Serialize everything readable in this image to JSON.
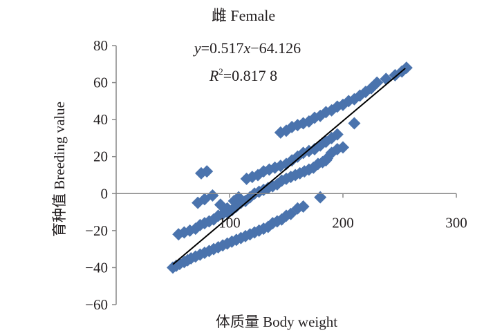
{
  "chart_data": {
    "type": "scatter",
    "title": "雌 Female",
    "annotations": {
      "equation": {
        "y": "y",
        "eq": "=0.517",
        "x": "x",
        "rest": "−64.126"
      },
      "r2": {
        "R": "R",
        "sup": "2",
        "rest": "=0.817 8"
      }
    },
    "xlabel": "体质量 Body weight",
    "ylabel": "育种值 Breeding value",
    "xlim": [
      0,
      300
    ],
    "ylim": [
      -60,
      80
    ],
    "x_ticks": [
      "100",
      "200",
      "300"
    ],
    "y_ticks": [
      "80",
      "60",
      "40",
      "20",
      "0",
      "−20",
      "−40",
      "−60"
    ],
    "x_tick_values": [
      100,
      200,
      300
    ],
    "y_tick_values": [
      80,
      60,
      40,
      20,
      0,
      -20,
      -40,
      -60
    ],
    "grid": false,
    "colors": {
      "points": "#4a73ad",
      "trendline": "#000000",
      "axes": "#888888"
    },
    "trendline": {
      "slope": 0.517,
      "intercept": -64.126,
      "x_range": [
        50,
        255
      ]
    },
    "series": [
      {
        "values": [
          [
            50,
            -40
          ],
          [
            53,
            -39
          ],
          [
            56,
            -38
          ],
          [
            60,
            -37
          ],
          [
            63,
            -36
          ],
          [
            66,
            -35
          ],
          [
            70,
            -34
          ],
          [
            74,
            -33
          ],
          [
            78,
            -32
          ],
          [
            82,
            -31
          ],
          [
            86,
            -30
          ],
          [
            90,
            -29
          ],
          [
            94,
            -28
          ],
          [
            98,
            -27
          ],
          [
            102,
            -26
          ],
          [
            106,
            -25
          ],
          [
            110,
            -24
          ],
          [
            114,
            -23
          ],
          [
            118,
            -22
          ],
          [
            122,
            -21
          ],
          [
            126,
            -20
          ],
          [
            130,
            -19
          ],
          [
            134,
            -18
          ],
          [
            138,
            -16
          ],
          [
            142,
            -15
          ],
          [
            146,
            -14
          ],
          [
            150,
            -12
          ],
          [
            154,
            -11
          ],
          [
            160,
            -8
          ],
          [
            165,
            -7
          ],
          [
            180,
            -2
          ],
          [
            55,
            -22
          ],
          [
            60,
            -21
          ],
          [
            65,
            -20
          ],
          [
            70,
            -19
          ],
          [
            74,
            -17
          ],
          [
            78,
            -16
          ],
          [
            82,
            -15
          ],
          [
            86,
            -14
          ],
          [
            90,
            -12
          ],
          [
            94,
            -11
          ],
          [
            98,
            -10
          ],
          [
            102,
            -9
          ],
          [
            106,
            -7
          ],
          [
            110,
            -5
          ],
          [
            114,
            -4
          ],
          [
            118,
            -2
          ],
          [
            122,
            0
          ],
          [
            126,
            1
          ],
          [
            130,
            2
          ],
          [
            134,
            3
          ],
          [
            138,
            4
          ],
          [
            142,
            5
          ],
          [
            146,
            7
          ],
          [
            150,
            8
          ],
          [
            154,
            9
          ],
          [
            158,
            10
          ],
          [
            162,
            11
          ],
          [
            166,
            12
          ],
          [
            170,
            13
          ],
          [
            174,
            14
          ],
          [
            178,
            16
          ],
          [
            182,
            17
          ],
          [
            186,
            19
          ],
          [
            190,
            22
          ],
          [
            195,
            24
          ],
          [
            200,
            25
          ],
          [
            185,
            18
          ],
          [
            72,
            -5
          ],
          [
            78,
            -3
          ],
          [
            85,
            -1
          ],
          [
            92,
            -6
          ],
          [
            98,
            -8
          ],
          [
            104,
            -4
          ],
          [
            108,
            -2
          ],
          [
            75,
            11
          ],
          [
            80,
            12
          ],
          [
            115,
            8
          ],
          [
            120,
            9
          ],
          [
            125,
            10
          ],
          [
            130,
            12
          ],
          [
            135,
            13
          ],
          [
            140,
            14
          ],
          [
            145,
            15
          ],
          [
            150,
            16
          ],
          [
            155,
            18
          ],
          [
            160,
            20
          ],
          [
            165,
            22
          ],
          [
            170,
            23
          ],
          [
            175,
            24
          ],
          [
            180,
            26
          ],
          [
            185,
            28
          ],
          [
            190,
            30
          ],
          [
            195,
            32
          ],
          [
            210,
            38
          ],
          [
            145,
            33
          ],
          [
            150,
            34
          ],
          [
            155,
            36
          ],
          [
            160,
            37
          ],
          [
            165,
            38
          ],
          [
            170,
            39
          ],
          [
            175,
            41
          ],
          [
            180,
            42
          ],
          [
            185,
            44
          ],
          [
            190,
            45
          ],
          [
            195,
            47
          ],
          [
            200,
            48
          ],
          [
            205,
            50
          ],
          [
            210,
            51
          ],
          [
            215,
            53
          ],
          [
            220,
            55
          ],
          [
            225,
            57
          ],
          [
            230,
            60
          ],
          [
            238,
            62
          ],
          [
            246,
            64
          ],
          [
            252,
            66
          ],
          [
            256,
            68
          ]
        ]
      }
    ]
  }
}
